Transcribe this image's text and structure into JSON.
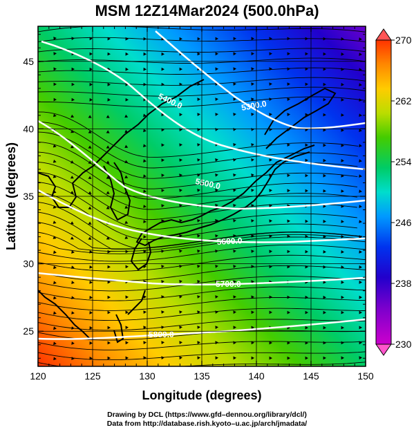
{
  "title": "MSM 12Z14Mar2024 (500.0hPa)",
  "x_axis": {
    "label": "Longitude (degrees)",
    "range": [
      120,
      150
    ],
    "ticks": [
      120,
      125,
      130,
      135,
      140,
      145,
      150
    ]
  },
  "y_axis": {
    "label": "Latitude (degrees)",
    "range": [
      22.4,
      47.6
    ],
    "ticks": [
      25,
      30,
      35,
      40,
      45
    ]
  },
  "colorbar": {
    "ticks": [
      230,
      238,
      246,
      254,
      262,
      270
    ],
    "min": 230,
    "max": 270,
    "palette": [
      "#ff55cc",
      "#cc00cc",
      "#7a00cc",
      "#2200cc",
      "#0033ee",
      "#0088ff",
      "#00ccff",
      "#00ddbb",
      "#00cc66",
      "#22cc00",
      "#88dd00",
      "#ccdd00",
      "#ffcc00",
      "#ff8800",
      "#ff3300",
      "#ff5555"
    ]
  },
  "contours": [
    {
      "label": "5300.0",
      "level": 5300
    },
    {
      "label": "5400.0",
      "level": 5400
    },
    {
      "label": "5500.0",
      "level": 5500
    },
    {
      "label": "5600.0",
      "level": 5600
    },
    {
      "label": "5700.0",
      "level": 5700
    },
    {
      "label": "5800.0",
      "level": 5800
    }
  ],
  "credits": {
    "line1": "Drawing by DCL (https://www.gfd–dennou.org/library/dcl/)",
    "line2": "Data from http://database.rish.kyoto–u.ac.jp/arch/jmadata/"
  }
}
